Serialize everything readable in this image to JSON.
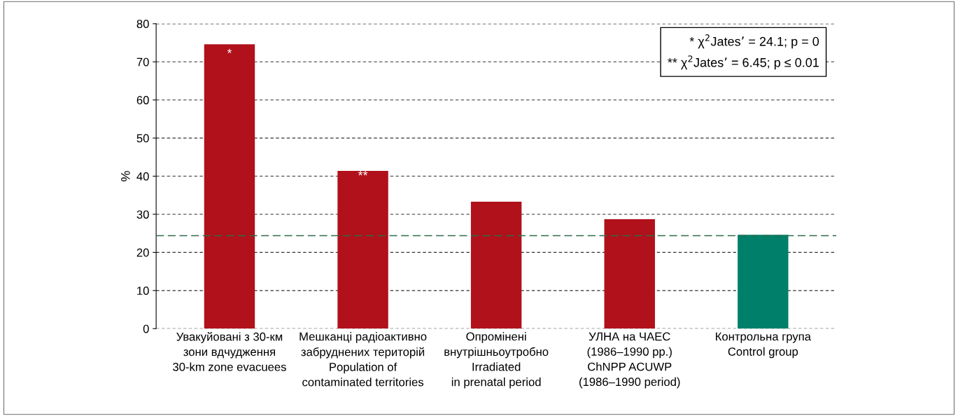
{
  "chart_data": {
    "type": "bar",
    "ylabel": "%",
    "categories": [
      "Увакуйовані з 30-км\nзони вдчудження\n30-km zone evacuees",
      "Мешканці радіоактивно\nзабруднених територій\nPopulation of\ncontaminated territories",
      "Опромінені\nвнутрішньоутробно\nIrradiated\nin prenatal period",
      "УЛНА на ЧАЕС\n(1986–1990 рр.)\nChNPP ACUWP\n(1986–1990 period)",
      "Контрольна група\nControl group"
    ],
    "values": [
      74.6,
      41.4,
      33.3,
      28.7,
      24.6
    ],
    "colors": [
      "#b0111a",
      "#b0111a",
      "#b0111a",
      "#b0111a",
      "#00806a"
    ],
    "ylim": [
      0,
      80
    ],
    "yticks": [
      0,
      10,
      20,
      30,
      40,
      50,
      60,
      70,
      80
    ],
    "grid": "y",
    "ref_lines": [
      {
        "axis": "y",
        "value": 24.4,
        "color": "#2e6b4a",
        "line_style": "dashed"
      }
    ],
    "annotations": [
      "*",
      "**",
      "* χ$^{2}$Jates’ = 24.1; p = 0\n** χ$^{2}$Jates’ = 6.45; p ≤ 0.01"
    ]
  }
}
